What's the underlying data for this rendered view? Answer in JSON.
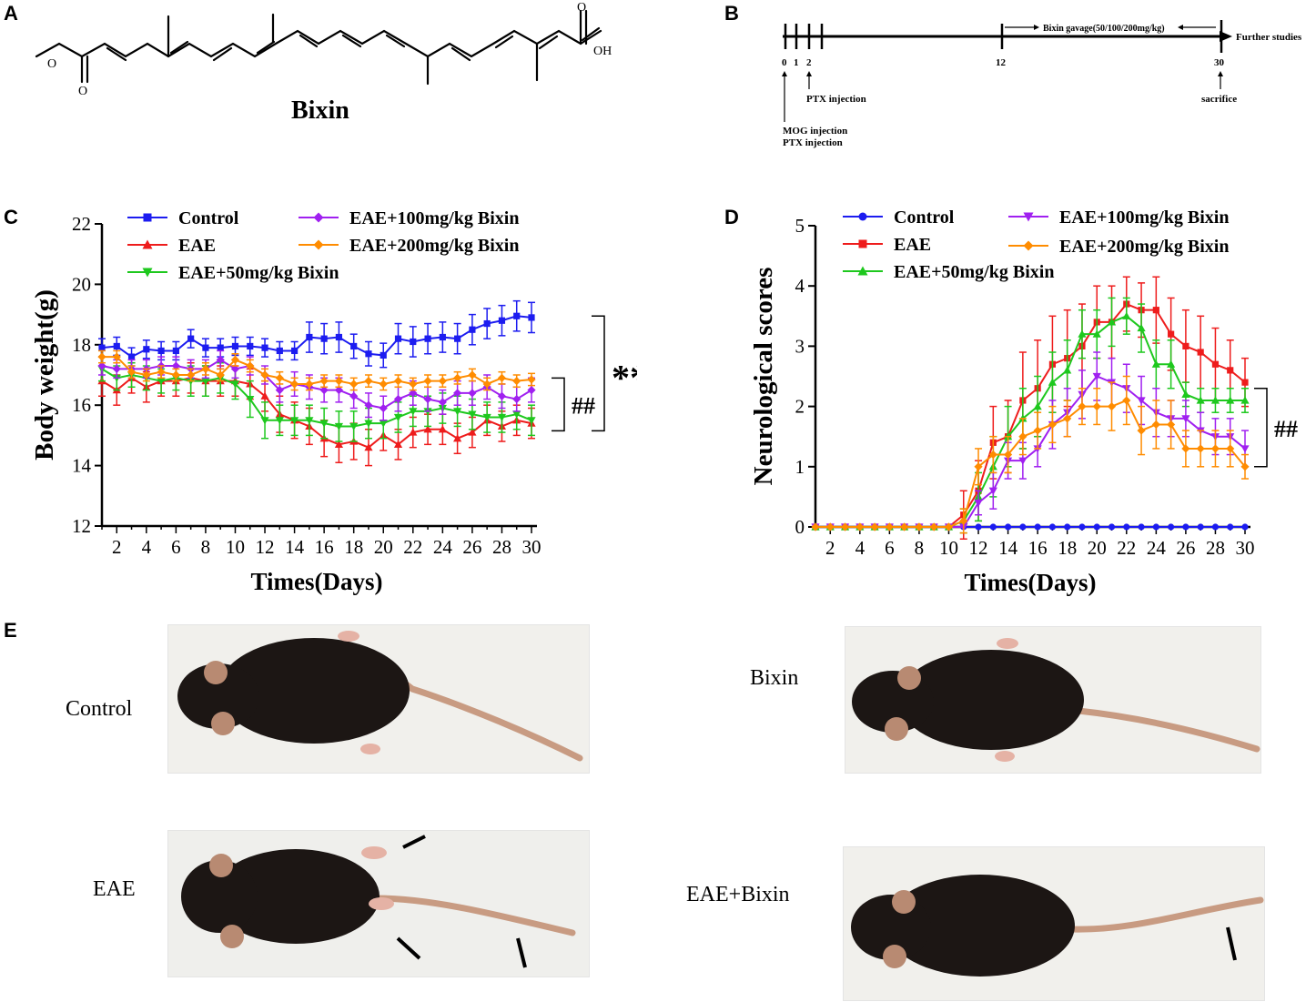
{
  "panels": {
    "a": "A",
    "b": "B",
    "c": "C",
    "d": "D",
    "e": "E"
  },
  "molecule": {
    "name": "Bixin",
    "oh": "OH",
    "o_labels": [
      "O",
      "O",
      "O"
    ]
  },
  "timeline": {
    "ticks": [
      "0",
      "1",
      "2",
      "12",
      "30"
    ],
    "gavage": "Bixin gavage(50/100/200mg/kg)",
    "further": "Further studies",
    "ptx": "PTX injection",
    "mog": "MOG injection",
    "ptx2": "PTX injection",
    "sacrifice": "sacrifice"
  },
  "photos": {
    "control": "Control",
    "bixin": "Bixin",
    "eae": "EAE",
    "eae_bixin": "EAE+Bixin"
  },
  "colors": {
    "control": "#1c1cf0",
    "eae": "#ee1c1c",
    "b50": "#1ec81e",
    "b100": "#a020f0",
    "b200": "#ff8c00"
  },
  "chart_data": [
    {
      "type": "line",
      "panel": "C",
      "title": "",
      "xlabel": "Times(Days)",
      "ylabel": "Body weight(g)",
      "xlim": [
        1,
        30
      ],
      "ylim": [
        12,
        22
      ],
      "xticks": [
        2,
        4,
        6,
        8,
        10,
        12,
        14,
        16,
        18,
        20,
        22,
        24,
        26,
        28,
        30
      ],
      "yticks": [
        12,
        14,
        16,
        18,
        20,
        22
      ],
      "x": [
        1,
        2,
        3,
        4,
        5,
        6,
        7,
        8,
        9,
        10,
        11,
        12,
        13,
        14,
        15,
        16,
        17,
        18,
        19,
        20,
        21,
        22,
        23,
        24,
        25,
        26,
        27,
        28,
        29,
        30
      ],
      "series": [
        {
          "name": "Control",
          "key": "control",
          "marker": "square",
          "values": [
            17.9,
            17.95,
            17.6,
            17.85,
            17.8,
            17.8,
            18.2,
            17.9,
            17.9,
            17.95,
            17.95,
            17.9,
            17.8,
            17.8,
            18.25,
            18.2,
            18.25,
            17.95,
            17.7,
            17.65,
            18.2,
            18.1,
            18.2,
            18.25,
            18.2,
            18.5,
            18.7,
            18.8,
            18.95,
            18.9
          ],
          "errors": [
            0.3,
            0.3,
            0.3,
            0.3,
            0.3,
            0.3,
            0.3,
            0.3,
            0.3,
            0.3,
            0.3,
            0.3,
            0.3,
            0.3,
            0.5,
            0.5,
            0.5,
            0.4,
            0.4,
            0.4,
            0.5,
            0.5,
            0.5,
            0.5,
            0.5,
            0.5,
            0.5,
            0.5,
            0.5,
            0.5
          ]
        },
        {
          "name": "EAE",
          "key": "eae",
          "marker": "triangle",
          "values": [
            16.8,
            16.5,
            16.9,
            16.6,
            16.8,
            16.8,
            16.9,
            16.8,
            16.8,
            16.8,
            16.7,
            16.3,
            15.7,
            15.5,
            15.3,
            14.9,
            14.7,
            14.8,
            14.6,
            15.0,
            14.7,
            15.1,
            15.2,
            15.2,
            14.9,
            15.1,
            15.5,
            15.3,
            15.5,
            15.4
          ],
          "errors": [
            0.5,
            0.5,
            0.5,
            0.5,
            0.5,
            0.5,
            0.5,
            0.5,
            0.5,
            0.5,
            0.5,
            0.5,
            0.6,
            0.6,
            0.6,
            0.6,
            0.6,
            0.6,
            0.6,
            0.5,
            0.5,
            0.5,
            0.5,
            0.5,
            0.5,
            0.5,
            0.5,
            0.5,
            0.5,
            0.5
          ]
        },
        {
          "name": "EAE+50mg/kg Bixin",
          "key": "b50",
          "marker": "down-triangle",
          "values": [
            17.2,
            16.9,
            17.0,
            16.9,
            16.8,
            16.9,
            16.8,
            16.8,
            16.9,
            16.7,
            16.2,
            15.5,
            15.5,
            15.5,
            15.5,
            15.4,
            15.3,
            15.3,
            15.4,
            15.4,
            15.6,
            15.8,
            15.8,
            15.9,
            15.8,
            15.7,
            15.6,
            15.6,
            15.7,
            15.5
          ],
          "errors": [
            0.4,
            0.4,
            0.4,
            0.4,
            0.4,
            0.4,
            0.5,
            0.5,
            0.5,
            0.5,
            0.6,
            0.6,
            0.5,
            0.5,
            0.5,
            0.5,
            0.5,
            0.5,
            0.5,
            0.5,
            0.5,
            0.5,
            0.5,
            0.5,
            0.5,
            0.5,
            0.5,
            0.5,
            0.5,
            0.5
          ]
        },
        {
          "name": "EAE+100mg/kg Bixin",
          "key": "b100",
          "marker": "diamond",
          "values": [
            17.3,
            17.2,
            17.2,
            17.2,
            17.3,
            17.3,
            17.2,
            17.2,
            17.5,
            17.2,
            17.3,
            17.0,
            16.5,
            16.7,
            16.6,
            16.5,
            16.5,
            16.3,
            16.0,
            15.9,
            16.2,
            16.4,
            16.2,
            16.1,
            16.4,
            16.4,
            16.6,
            16.3,
            16.2,
            16.5
          ],
          "errors": [
            0.3,
            0.3,
            0.3,
            0.3,
            0.3,
            0.3,
            0.3,
            0.3,
            0.3,
            0.3,
            0.3,
            0.3,
            0.4,
            0.4,
            0.4,
            0.4,
            0.4,
            0.4,
            0.4,
            0.4,
            0.4,
            0.4,
            0.4,
            0.4,
            0.4,
            0.4,
            0.4,
            0.4,
            0.4,
            0.4
          ]
        },
        {
          "name": "EAE+200mg/kg Bixin",
          "key": "b200",
          "marker": "diamond",
          "values": [
            17.6,
            17.6,
            17.1,
            17.0,
            17.1,
            17.0,
            17.0,
            17.2,
            17.0,
            17.5,
            17.3,
            17.0,
            16.9,
            16.7,
            16.7,
            16.8,
            16.8,
            16.7,
            16.8,
            16.7,
            16.8,
            16.7,
            16.8,
            16.8,
            16.9,
            17.0,
            16.7,
            16.9,
            16.8,
            16.85
          ],
          "errors": [
            0.2,
            0.2,
            0.2,
            0.2,
            0.2,
            0.2,
            0.2,
            0.2,
            0.2,
            0.2,
            0.2,
            0.2,
            0.2,
            0.2,
            0.2,
            0.2,
            0.2,
            0.2,
            0.2,
            0.2,
            0.2,
            0.2,
            0.2,
            0.2,
            0.2,
            0.2,
            0.2,
            0.2,
            0.2,
            0.2
          ]
        }
      ],
      "significance": [
        "**",
        "##"
      ],
      "legend_position": "top"
    },
    {
      "type": "line",
      "panel": "D",
      "title": "",
      "xlabel": "Times(Days)",
      "ylabel": "Neurological scores",
      "xlim": [
        1,
        30
      ],
      "ylim": [
        0,
        5
      ],
      "xticks": [
        2,
        4,
        6,
        8,
        10,
        12,
        14,
        16,
        18,
        20,
        22,
        24,
        26,
        28,
        30
      ],
      "yticks": [
        0,
        1,
        2,
        3,
        4,
        5
      ],
      "x": [
        1,
        2,
        3,
        4,
        5,
        6,
        7,
        8,
        9,
        10,
        11,
        12,
        13,
        14,
        15,
        16,
        17,
        18,
        19,
        20,
        21,
        22,
        23,
        24,
        25,
        26,
        27,
        28,
        29,
        30
      ],
      "series": [
        {
          "name": "Control",
          "key": "control",
          "marker": "circle",
          "values": [
            0,
            0,
            0,
            0,
            0,
            0,
            0,
            0,
            0,
            0,
            0,
            0,
            0,
            0,
            0,
            0,
            0,
            0,
            0,
            0,
            0,
            0,
            0,
            0,
            0,
            0,
            0,
            0,
            0,
            0
          ],
          "errors": [
            0,
            0,
            0,
            0,
            0,
            0,
            0,
            0,
            0,
            0,
            0,
            0,
            0,
            0,
            0,
            0,
            0,
            0,
            0,
            0,
            0,
            0,
            0,
            0,
            0,
            0,
            0,
            0,
            0,
            0
          ]
        },
        {
          "name": "EAE",
          "key": "eae",
          "marker": "square",
          "values": [
            0,
            0,
            0,
            0,
            0,
            0,
            0,
            0,
            0,
            0,
            0.2,
            0.6,
            1.4,
            1.5,
            2.1,
            2.3,
            2.7,
            2.8,
            3.0,
            3.4,
            3.4,
            3.7,
            3.6,
            3.6,
            3.2,
            3.0,
            2.9,
            2.7,
            2.6,
            2.4
          ],
          "errors": [
            0,
            0,
            0,
            0,
            0,
            0,
            0,
            0,
            0,
            0,
            0.4,
            0.5,
            0.6,
            0.6,
            0.8,
            0.8,
            0.8,
            0.8,
            0.7,
            0.6,
            0.6,
            0.45,
            0.45,
            0.55,
            0.6,
            0.6,
            0.6,
            0.6,
            0.5,
            0.4
          ]
        },
        {
          "name": "EAE+50mg/kg Bixin",
          "key": "b50",
          "marker": "triangle",
          "values": [
            0,
            0,
            0,
            0,
            0,
            0,
            0,
            0,
            0,
            0,
            0.1,
            0.5,
            1.0,
            1.5,
            1.8,
            2.0,
            2.4,
            2.6,
            3.2,
            3.2,
            3.4,
            3.5,
            3.3,
            2.7,
            2.7,
            2.2,
            2.1,
            2.1,
            2.1,
            2.1
          ],
          "errors": [
            0,
            0,
            0,
            0,
            0,
            0,
            0,
            0,
            0,
            0,
            0.2,
            0.4,
            0.5,
            0.5,
            0.5,
            0.5,
            0.5,
            0.5,
            0.4,
            0.4,
            0.4,
            0.3,
            0.4,
            0.4,
            0.4,
            0.2,
            0.2,
            0.2,
            0.2,
            0.2
          ]
        },
        {
          "name": "EAE+100mg/kg Bixin",
          "key": "b100",
          "marker": "down-triangle",
          "values": [
            0,
            0,
            0,
            0,
            0,
            0,
            0,
            0,
            0,
            0,
            0,
            0.4,
            0.6,
            1.1,
            1.1,
            1.3,
            1.7,
            1.9,
            2.2,
            2.5,
            2.4,
            2.3,
            2.1,
            1.9,
            1.8,
            1.8,
            1.6,
            1.5,
            1.5,
            1.3
          ],
          "errors": [
            0,
            0,
            0,
            0,
            0,
            0,
            0,
            0,
            0,
            0,
            0,
            0.2,
            0.3,
            0.3,
            0.3,
            0.3,
            0.4,
            0.4,
            0.4,
            0.4,
            0.4,
            0.4,
            0.4,
            0.4,
            0.3,
            0.3,
            0.3,
            0.3,
            0.3,
            0.3
          ]
        },
        {
          "name": "EAE+200mg/kg Bixin",
          "key": "b200",
          "marker": "diamond",
          "values": [
            0,
            0,
            0,
            0,
            0,
            0,
            0,
            0,
            0,
            0,
            0.1,
            1.0,
            1.2,
            1.2,
            1.5,
            1.6,
            1.7,
            1.8,
            2.0,
            2.0,
            2.0,
            2.1,
            1.6,
            1.7,
            1.7,
            1.3,
            1.3,
            1.3,
            1.3,
            1.0
          ],
          "errors": [
            0,
            0,
            0,
            0,
            0,
            0,
            0,
            0,
            0,
            0,
            0.2,
            0.3,
            0.3,
            0.3,
            0.3,
            0.3,
            0.3,
            0.3,
            0.3,
            0.3,
            0.4,
            0.4,
            0.4,
            0.4,
            0.4,
            0.3,
            0.3,
            0.3,
            0.3,
            0.2
          ]
        }
      ],
      "significance": [
        "##"
      ],
      "legend_position": "top"
    }
  ]
}
